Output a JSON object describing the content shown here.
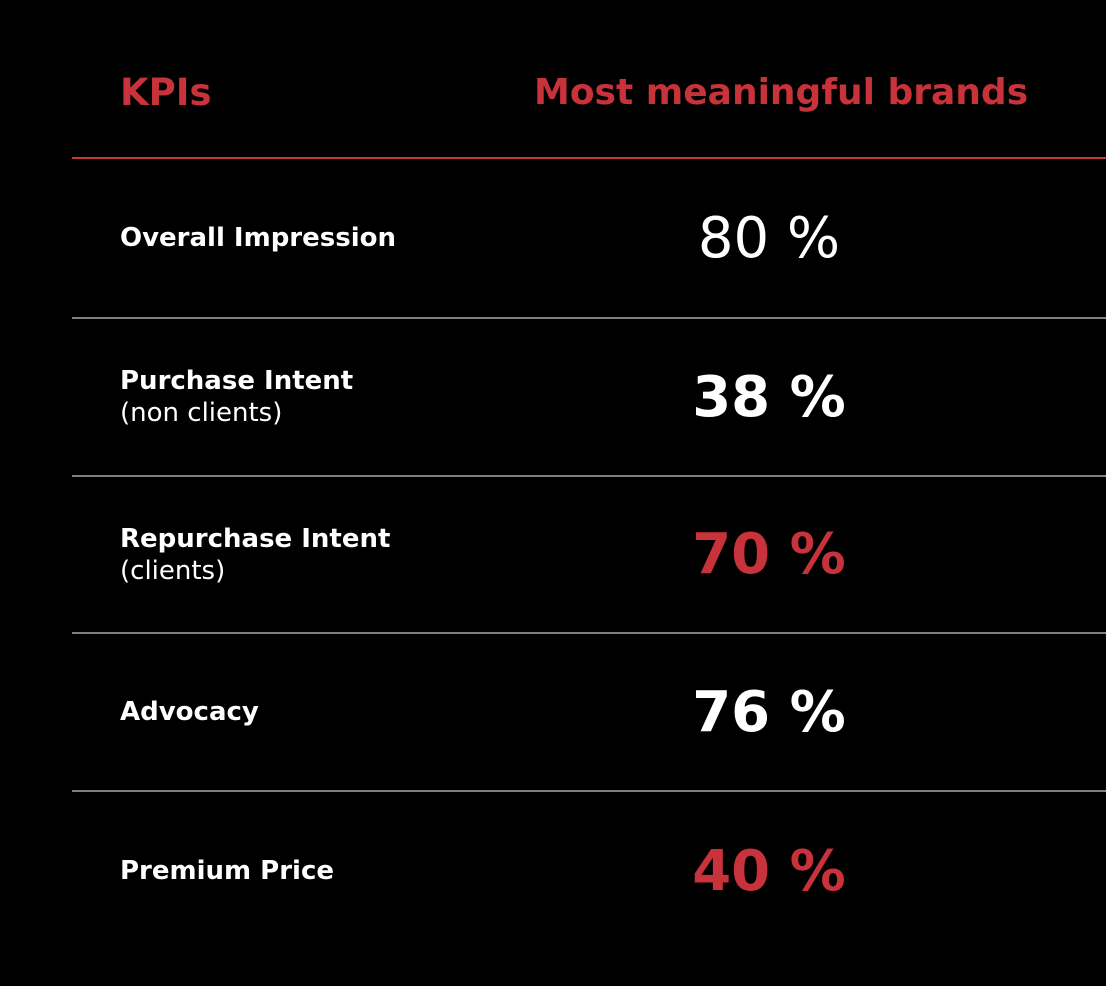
{
  "colors": {
    "background": "#000000",
    "accent": "#c8323a",
    "text": "#ffffff",
    "divider": "#808080"
  },
  "header": {
    "kpi_label": "KPIs",
    "brand_label": "Most meaningful brands"
  },
  "rows": [
    {
      "label": "Overall Impression",
      "sublabel": "",
      "value_text": "80 %",
      "value_color": "#ffffff",
      "weight": "regular"
    },
    {
      "label": "Purchase Intent",
      "sublabel": "(non clients)",
      "value_text": "38 %",
      "value_color": "#ffffff",
      "weight": "bold"
    },
    {
      "label": "Repurchase Intent",
      "sublabel": "(clients)",
      "value_text": "70 %",
      "value_color": "#c8323a",
      "weight": "bold"
    },
    {
      "label": "Advocacy",
      "sublabel": "",
      "value_text": "76 %",
      "value_color": "#ffffff",
      "weight": "bold"
    },
    {
      "label": "Premium Price",
      "sublabel": "",
      "value_text": "40 %",
      "value_color": "#c8323a",
      "weight": "bold"
    }
  ],
  "chart_data": {
    "type": "table",
    "columns": [
      "KPIs",
      "Most meaningful brands"
    ],
    "categories": [
      "Overall Impression",
      "Purchase Intent (non clients)",
      "Repurchase Intent (clients)",
      "Advocacy",
      "Premium Price"
    ],
    "values": [
      80,
      38,
      70,
      76,
      40
    ],
    "unit": "%"
  }
}
